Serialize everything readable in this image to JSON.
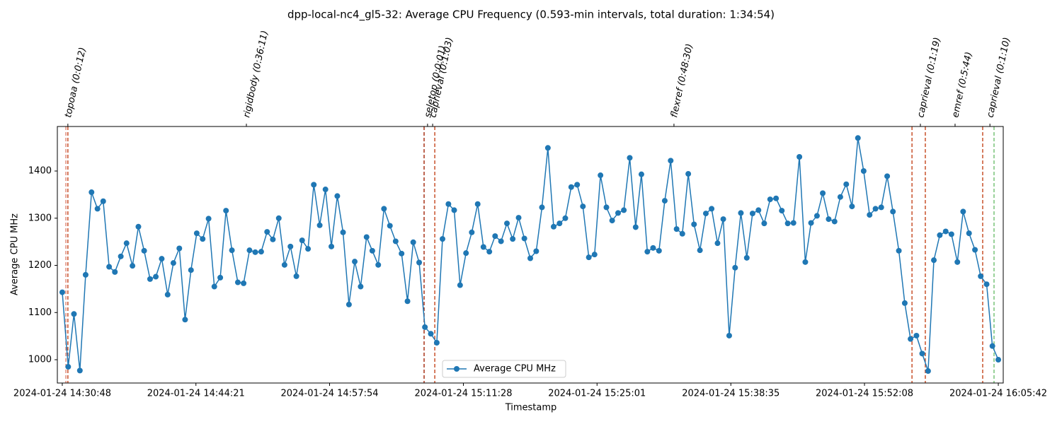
{
  "chart_data": {
    "type": "line",
    "title": "dpp-local-nc4_gl5-32: Average CPU Frequency (0.593-min intervals, total duration: 1:34:54)",
    "x_label": "Timestamp",
    "y_label": "Average CPU MHz",
    "x": [
      "2024-01-24 14:30:48",
      "2024-01-24 14:31:24",
      "2024-01-24 14:31:59",
      "2024-01-24 14:32:35",
      "2024-01-24 14:33:10",
      "2024-01-24 14:33:46",
      "2024-01-24 14:34:22",
      "2024-01-24 14:34:57",
      "2024-01-24 14:35:33",
      "2024-01-24 14:36:08",
      "2024-01-24 14:36:44",
      "2024-01-24 14:37:19",
      "2024-01-24 14:37:55",
      "2024-01-24 14:38:31",
      "2024-01-24 14:39:06",
      "2024-01-24 14:39:42",
      "2024-01-24 14:40:17",
      "2024-01-24 14:40:53",
      "2024-01-24 14:41:29",
      "2024-01-24 14:42:04",
      "2024-01-24 14:42:40",
      "2024-01-24 14:43:15",
      "2024-01-24 14:43:51",
      "2024-01-24 14:44:26",
      "2024-01-24 14:45:02",
      "2024-01-24 14:45:38",
      "2024-01-24 14:46:13",
      "2024-01-24 14:46:49",
      "2024-01-24 14:47:24",
      "2024-01-24 14:48:00",
      "2024-01-24 14:48:36",
      "2024-01-24 14:49:11",
      "2024-01-24 14:49:47",
      "2024-01-24 14:50:22",
      "2024-01-24 14:50:58",
      "2024-01-24 14:51:34",
      "2024-01-24 14:52:09",
      "2024-01-24 14:52:45",
      "2024-01-24 14:53:20",
      "2024-01-24 14:53:56",
      "2024-01-24 14:54:32",
      "2024-01-24 14:55:07",
      "2024-01-24 14:55:43",
      "2024-01-24 14:56:18",
      "2024-01-24 14:56:54",
      "2024-01-24 14:57:29",
      "2024-01-24 14:58:05",
      "2024-01-24 14:58:41",
      "2024-01-24 14:59:16",
      "2024-01-24 14:59:52",
      "2024-01-24 15:00:27",
      "2024-01-24 15:01:03",
      "2024-01-24 15:01:39",
      "2024-01-24 15:02:14",
      "2024-01-24 15:02:50",
      "2024-01-24 15:03:25",
      "2024-01-24 15:04:01",
      "2024-01-24 15:04:36",
      "2024-01-24 15:05:12",
      "2024-01-24 15:05:48",
      "2024-01-24 15:06:23",
      "2024-01-24 15:06:59",
      "2024-01-24 15:07:34",
      "2024-01-24 15:08:10",
      "2024-01-24 15:08:46",
      "2024-01-24 15:09:21",
      "2024-01-24 15:09:57",
      "2024-01-24 15:10:32",
      "2024-01-24 15:11:08",
      "2024-01-24 15:11:44",
      "2024-01-24 15:12:19",
      "2024-01-24 15:12:55",
      "2024-01-24 15:13:30",
      "2024-01-24 15:14:06",
      "2024-01-24 15:14:41",
      "2024-01-24 15:15:17",
      "2024-01-24 15:15:53",
      "2024-01-24 15:16:28",
      "2024-01-24 15:17:04",
      "2024-01-24 15:17:39",
      "2024-01-24 15:18:15",
      "2024-01-24 15:18:51",
      "2024-01-24 15:19:26",
      "2024-01-24 15:20:02",
      "2024-01-24 15:20:37",
      "2024-01-24 15:21:13",
      "2024-01-24 15:21:48",
      "2024-01-24 15:22:24",
      "2024-01-24 15:23:00",
      "2024-01-24 15:23:35",
      "2024-01-24 15:24:11",
      "2024-01-24 15:24:46",
      "2024-01-24 15:25:22",
      "2024-01-24 15:25:58",
      "2024-01-24 15:26:33",
      "2024-01-24 15:27:09",
      "2024-01-24 15:27:44",
      "2024-01-24 15:28:20",
      "2024-01-24 15:28:56",
      "2024-01-24 15:29:31",
      "2024-01-24 15:30:07",
      "2024-01-24 15:30:42",
      "2024-01-24 15:31:18",
      "2024-01-24 15:31:53",
      "2024-01-24 15:32:29",
      "2024-01-24 15:33:05",
      "2024-01-24 15:33:40",
      "2024-01-24 15:34:16",
      "2024-01-24 15:34:51",
      "2024-01-24 15:35:27",
      "2024-01-24 15:36:03",
      "2024-01-24 15:36:38",
      "2024-01-24 15:37:14",
      "2024-01-24 15:37:49",
      "2024-01-24 15:38:25",
      "2024-01-24 15:39:01",
      "2024-01-24 15:39:36",
      "2024-01-24 15:40:12",
      "2024-01-24 15:40:47",
      "2024-01-24 15:41:23",
      "2024-01-24 15:41:58",
      "2024-01-24 15:42:34",
      "2024-01-24 15:43:10",
      "2024-01-24 15:43:45",
      "2024-01-24 15:44:21",
      "2024-01-24 15:44:56",
      "2024-01-24 15:45:32",
      "2024-01-24 15:46:08",
      "2024-01-24 15:46:43",
      "2024-01-24 15:47:19",
      "2024-01-24 15:47:54",
      "2024-01-24 15:48:30",
      "2024-01-24 15:49:06",
      "2024-01-24 15:49:41",
      "2024-01-24 15:50:17",
      "2024-01-24 15:50:52",
      "2024-01-24 15:51:28",
      "2024-01-24 15:52:03",
      "2024-01-24 15:52:39",
      "2024-01-24 15:53:15",
      "2024-01-24 15:53:50",
      "2024-01-24 15:54:26",
      "2024-01-24 15:55:01",
      "2024-01-24 15:55:37",
      "2024-01-24 15:56:13",
      "2024-01-24 15:56:48",
      "2024-01-24 15:57:24",
      "2024-01-24 15:57:59",
      "2024-01-24 15:58:35",
      "2024-01-24 15:59:10",
      "2024-01-24 15:59:46",
      "2024-01-24 16:00:22",
      "2024-01-24 16:00:57",
      "2024-01-24 16:01:33",
      "2024-01-24 16:02:08",
      "2024-01-24 16:02:44",
      "2024-01-24 16:03:20",
      "2024-01-24 16:03:55",
      "2024-01-24 16:04:31",
      "2024-01-24 16:05:06",
      "2024-01-24 16:05:42"
    ],
    "series": [
      {
        "name": "Average CPU MHz",
        "color": "#1f77b4",
        "values": [
          1143,
          985,
          1097,
          977,
          1180,
          1355,
          1320,
          1336,
          1197,
          1186,
          1219,
          1247,
          1199,
          1282,
          1231,
          1171,
          1176,
          1214,
          1138,
          1205,
          1236,
          1085,
          1190,
          1268,
          1256,
          1299,
          1155,
          1174,
          1316,
          1232,
          1164,
          1162,
          1232,
          1228,
          1229,
          1271,
          1255,
          1300,
          1201,
          1240,
          1177,
          1253,
          1235,
          1371,
          1285,
          1361,
          1240,
          1347,
          1270,
          1117,
          1208,
          1155,
          1260,
          1231,
          1201,
          1320,
          1284,
          1251,
          1225,
          1124,
          1249,
          1206,
          1069,
          1055,
          1036,
          1256,
          1330,
          1317,
          1158,
          1226,
          1270,
          1330,
          1239,
          1229,
          1262,
          1251,
          1289,
          1256,
          1301,
          1257,
          1215,
          1230,
          1323,
          1449,
          1282,
          1289,
          1300,
          1366,
          1371,
          1325,
          1217,
          1223,
          1391,
          1323,
          1295,
          1311,
          1317,
          1428,
          1281,
          1393,
          1229,
          1237,
          1231,
          1337,
          1422,
          1277,
          1267,
          1394,
          1287,
          1232,
          1310,
          1320,
          1247,
          1298,
          1051,
          1195,
          1311,
          1216,
          1310,
          1317,
          1289,
          1340,
          1342,
          1316,
          1289,
          1290,
          1430,
          1207,
          1290,
          1305,
          1353,
          1298,
          1293,
          1345,
          1372,
          1325,
          1470,
          1400,
          1307,
          1320,
          1323,
          1389,
          1314,
          1231,
          1120,
          1044,
          1051,
          1013,
          976,
          1211,
          1264,
          1272,
          1266,
          1207,
          1314,
          1268,
          1233,
          1177,
          1160,
          1029,
          1000
        ]
      }
    ],
    "xlim": [
      "2024-01-24 14:30:18",
      "2024-01-24 16:06:12"
    ],
    "xticks": [
      "2024-01-24 14:30:48",
      "2024-01-24 14:44:21",
      "2024-01-24 14:57:54",
      "2024-01-24 15:11:28",
      "2024-01-24 15:25:01",
      "2024-01-24 15:38:35",
      "2024-01-24 15:52:08",
      "2024-01-24 16:05:42"
    ],
    "ylim": [
      950.6,
      1494.4
    ],
    "yticks": [
      1000,
      1100,
      1200,
      1300,
      1400
    ],
    "annotations": [
      {
        "text": "topoaa (0:0:12)",
        "x": "2024-01-24 14:31:22"
      },
      {
        "text": "rigidbody (0:36:11)",
        "x": "2024-01-24 14:49:28"
      },
      {
        "text": "seletop (0:0:01)",
        "x": "2024-01-24 15:07:50"
      },
      {
        "text": "caprieval (0:1:03)",
        "x": "2024-01-24 15:08:21"
      },
      {
        "text": "flexref (0:48:30)",
        "x": "2024-01-24 15:32:49"
      },
      {
        "text": "caprieval (0:1:19)",
        "x": "2024-01-24 15:57:48"
      },
      {
        "text": "emref (0:5:44)",
        "x": "2024-01-24 16:01:19"
      },
      {
        "text": "caprieval (0:1:10)",
        "x": "2024-01-24 16:04:51"
      }
    ],
    "vlines": [
      {
        "x": "2024-01-24 14:31:10",
        "color": "#e08a78"
      },
      {
        "x": "2024-01-24 14:31:22",
        "color": "#c8502a"
      },
      {
        "x": "2024-01-24 15:07:29",
        "color": "#a83218"
      },
      {
        "x": "2024-01-24 15:08:34",
        "color": "#c8502a"
      },
      {
        "x": "2024-01-24 15:56:57",
        "color": "#c8502a"
      },
      {
        "x": "2024-01-24 15:58:18",
        "color": "#c8502a"
      },
      {
        "x": "2024-01-24 16:04:07",
        "color": "#c8502a"
      },
      {
        "x": "2024-01-24 16:05:16",
        "color": "#77c277"
      }
    ],
    "grid": false,
    "legend": "lower center"
  }
}
